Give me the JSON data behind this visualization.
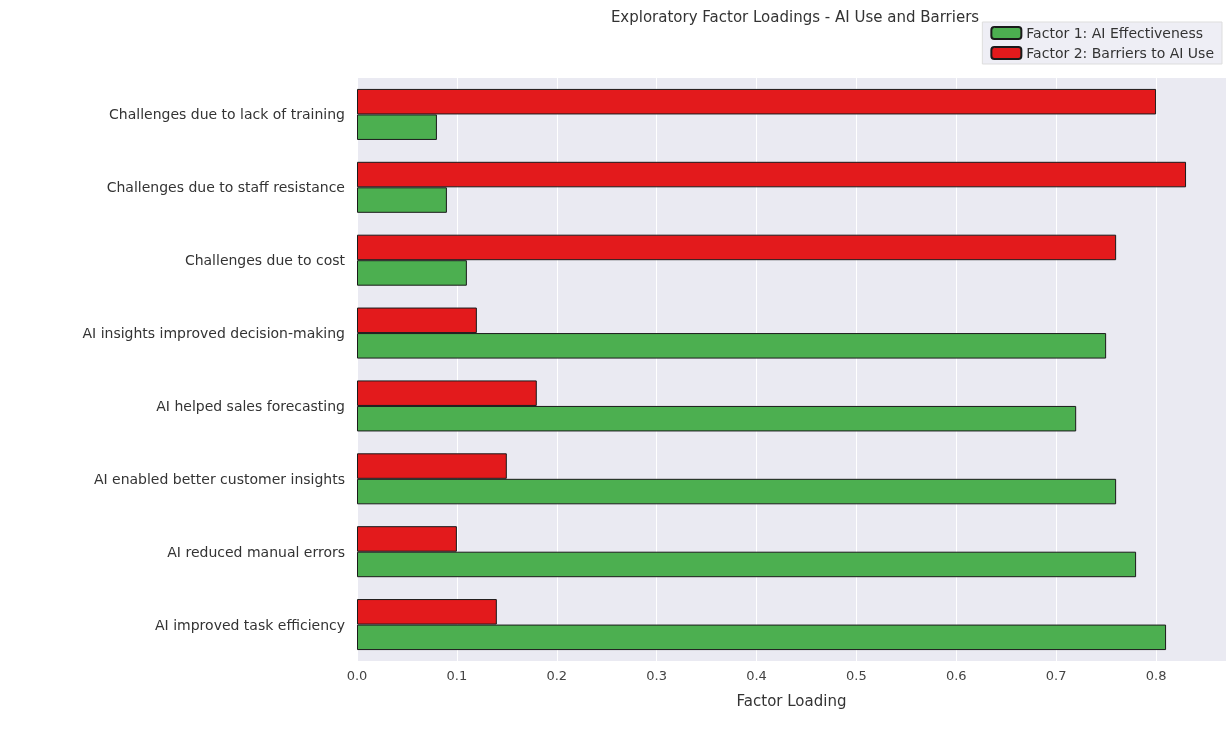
{
  "chart_data": {
    "type": "bar",
    "orientation": "horizontal",
    "title": "Exploratory Factor Loadings - AI Use and Barriers",
    "xlabel": "Factor Loading",
    "categories": [
      "Challenges due to lack of training",
      "Challenges due to staff resistance",
      "Challenges due to cost",
      "AI insights improved decision-making",
      "AI helped sales forecasting",
      "AI enabled better customer insights",
      "AI reduced manual errors",
      "AI improved task efficiency"
    ],
    "series": [
      {
        "name": "Factor 1: AI Effectiveness",
        "color": "#4caf50",
        "values": [
          0.08,
          0.09,
          0.11,
          0.75,
          0.72,
          0.76,
          0.78,
          0.81
        ]
      },
      {
        "name": "Factor 2: Barriers to AI Use",
        "color": "#e31a1c",
        "values": [
          0.8,
          0.83,
          0.76,
          0.12,
          0.18,
          0.15,
          0.1,
          0.14
        ]
      }
    ],
    "xlim": [
      0,
      0.87
    ],
    "xticks": [
      {
        "value": 0,
        "label": "0.0"
      },
      0.1,
      0.2,
      0.3,
      0.4,
      0.5,
      0.6,
      0.7,
      0.8
    ],
    "grid": true,
    "legend": "top right"
  }
}
